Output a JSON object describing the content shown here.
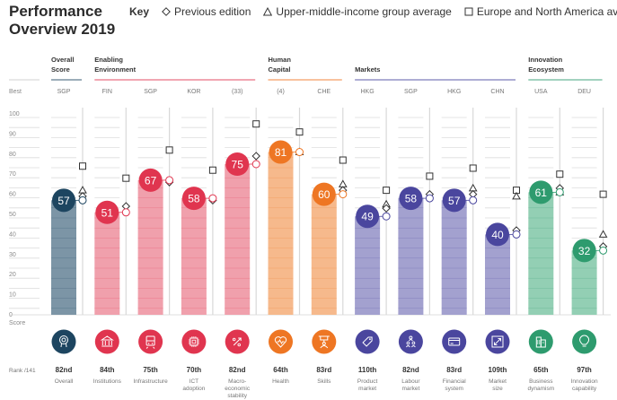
{
  "title_line1": "Performance",
  "title_line2": "Overview 2019",
  "key": {
    "label": "Key",
    "items": [
      {
        "symbol": "diamond",
        "label": "Previous edition"
      },
      {
        "symbol": "triangle",
        "label": "Upper-middle-income group average"
      },
      {
        "symbol": "square",
        "label": "Europe and North America average"
      }
    ]
  },
  "chart_data": {
    "type": "bar",
    "title": "Performance Overview 2019",
    "ylabel": "Score",
    "ylim": [
      0,
      100
    ],
    "yticks": [
      0,
      10,
      20,
      30,
      40,
      50,
      60,
      70,
      80,
      90,
      100
    ],
    "best_label": "Best",
    "rank_label": "Rank /141",
    "score_label": "Score",
    "groups": [
      {
        "name_l1": "Overall",
        "name_l2": "Score",
        "color": "#1d4560",
        "light": "#7c95a6",
        "pillars": [
          0
        ]
      },
      {
        "name_l1": "Enabling",
        "name_l2": "Environment",
        "color": "#e0354f",
        "light": "#f0a0ac",
        "pillars": [
          1,
          2,
          3,
          4
        ]
      },
      {
        "name_l1": "Human",
        "name_l2": "Capital",
        "color": "#ee7623",
        "light": "#f6b98c",
        "pillars": [
          5,
          6
        ]
      },
      {
        "name_l1": "Markets",
        "name_l2": "",
        "color": "#4a469e",
        "light": "#a3a1cf",
        "pillars": [
          7,
          8,
          9,
          10
        ]
      },
      {
        "name_l1": "Innovation",
        "name_l2": "Ecosystem",
        "color": "#2e9b6e",
        "light": "#93cfb4",
        "pillars": [
          11,
          12
        ]
      }
    ],
    "pillars": [
      {
        "name_l1": "Overall",
        "name_l2": "",
        "name_l3": "",
        "best": "SGP",
        "score": 57,
        "rank": "82nd",
        "group": 0,
        "icon": "award-icon",
        "previous": 59,
        "upper_middle": 62,
        "europe_na": 74
      },
      {
        "name_l1": "Institutions",
        "name_l2": "",
        "name_l3": "",
        "best": "FIN",
        "score": 51,
        "rank": "84th",
        "group": 1,
        "icon": "institution-icon",
        "previous": 54,
        "upper_middle": null,
        "europe_na": 68
      },
      {
        "name_l1": "Infrastructure",
        "name_l2": "",
        "name_l3": "",
        "best": "SGP",
        "score": 67,
        "rank": "75th",
        "group": 1,
        "icon": "train-icon",
        "previous": 66,
        "upper_middle": null,
        "europe_na": 82
      },
      {
        "name_l1": "ICT",
        "name_l2": "adoption",
        "name_l3": "",
        "best": "KOR",
        "score": 58,
        "rank": "70th",
        "group": 1,
        "icon": "chip-icon",
        "previous": 57,
        "upper_middle": null,
        "europe_na": 72
      },
      {
        "name_l1": "Macro-",
        "name_l2": "economic",
        "name_l3": "stability",
        "best": "(33)",
        "score": 75,
        "rank": "82nd",
        "group": 1,
        "icon": "percent-icon",
        "previous": 79,
        "upper_middle": null,
        "europe_na": 95
      },
      {
        "name_l1": "Health",
        "name_l2": "",
        "name_l3": "",
        "best": "(4)",
        "score": 81,
        "rank": "64th",
        "group": 2,
        "icon": "heart-icon",
        "previous": null,
        "upper_middle": 81,
        "europe_na": 91
      },
      {
        "name_l1": "Skills",
        "name_l2": "",
        "name_l3": "",
        "best": "CHE",
        "score": 60,
        "rank": "83rd",
        "group": 2,
        "icon": "teacher-icon",
        "previous": 62,
        "upper_middle": 65,
        "europe_na": 77
      },
      {
        "name_l1": "Product",
        "name_l2": "market",
        "name_l3": "",
        "best": "HKG",
        "score": 49,
        "rank": "110th",
        "group": 3,
        "icon": "tag-icon",
        "previous": 53,
        "upper_middle": 55,
        "europe_na": 62
      },
      {
        "name_l1": "Labour",
        "name_l2": "market",
        "name_l3": "",
        "best": "SGP",
        "score": 58,
        "rank": "82nd",
        "group": 3,
        "icon": "people-icon",
        "previous": 60,
        "upper_middle": null,
        "europe_na": 69
      },
      {
        "name_l1": "Financial",
        "name_l2": "system",
        "name_l3": "",
        "best": "HKG",
        "score": 57,
        "rank": "83rd",
        "group": 3,
        "icon": "card-icon",
        "previous": 60,
        "upper_middle": 63,
        "europe_na": 73
      },
      {
        "name_l1": "Market",
        "name_l2": "size",
        "name_l3": "",
        "best": "CHN",
        "score": 40,
        "rank": "109th",
        "group": 3,
        "icon": "expand-icon",
        "previous": 42,
        "upper_middle": 59,
        "europe_na": 62
      },
      {
        "name_l1": "Business",
        "name_l2": "dynamism",
        "name_l3": "",
        "best": "USA",
        "score": 61,
        "rank": "65th",
        "group": 4,
        "icon": "buildings-icon",
        "previous": 63,
        "upper_middle": 61,
        "europe_na": 70
      },
      {
        "name_l1": "Innovation",
        "name_l2": "capability",
        "name_l3": "",
        "best": "DEU",
        "score": 32,
        "rank": "97th",
        "group": 4,
        "icon": "lightbulb-icon",
        "previous": 34,
        "upper_middle": 40,
        "europe_na": 60
      }
    ]
  }
}
